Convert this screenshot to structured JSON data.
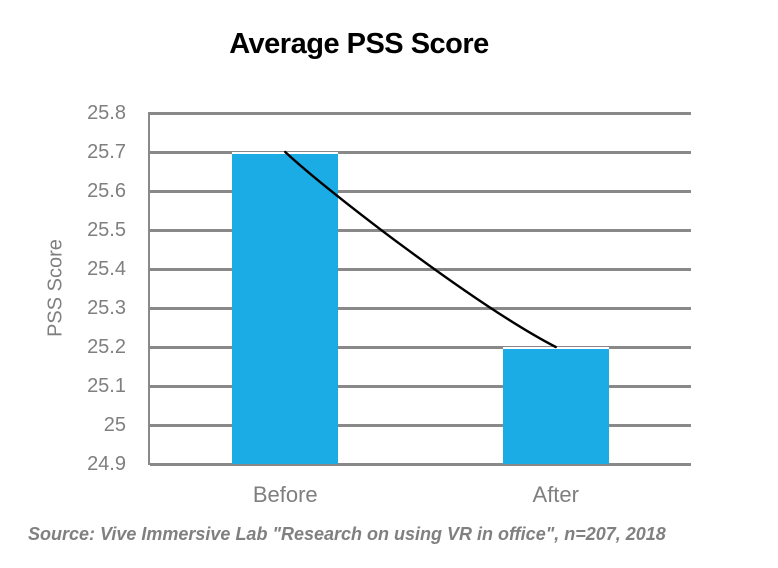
{
  "header": {
    "title": "Average PSS Score"
  },
  "chart_data": {
    "type": "bar",
    "title": "Average PSS Score",
    "categories": [
      "Before",
      "After"
    ],
    "values": [
      25.7,
      25.2
    ],
    "xlabel": "",
    "ylabel": "PSS Score",
    "ylim": [
      24.9,
      25.8
    ],
    "ytick_interval": 0.1,
    "ytick_labels_top_to_bottom": [
      "25.8",
      "25.7",
      "25.6",
      "25.5",
      "25.4",
      "25.3",
      "25.2",
      "25.1",
      "25",
      "24.9"
    ],
    "grid": true,
    "legend": false,
    "bar_color": "#1BACE6",
    "trend_line": {
      "shape": "concave-decay-curve",
      "color": "#000000",
      "from_value": 25.7,
      "to_value": 25.2
    }
  },
  "footer": {
    "source_note": "Source: Vive Immersive Lab \"Research on using VR in office\", n=207, 2018"
  },
  "colors": {
    "bar": "#1BACE6",
    "gridline": "#898989",
    "axis_line": "#898989",
    "tick_label": "#7F7F7F",
    "axis_title": "#7F7F7F",
    "chart_title": "#000000",
    "source_text": "#808080",
    "trend_line": "#000000"
  }
}
